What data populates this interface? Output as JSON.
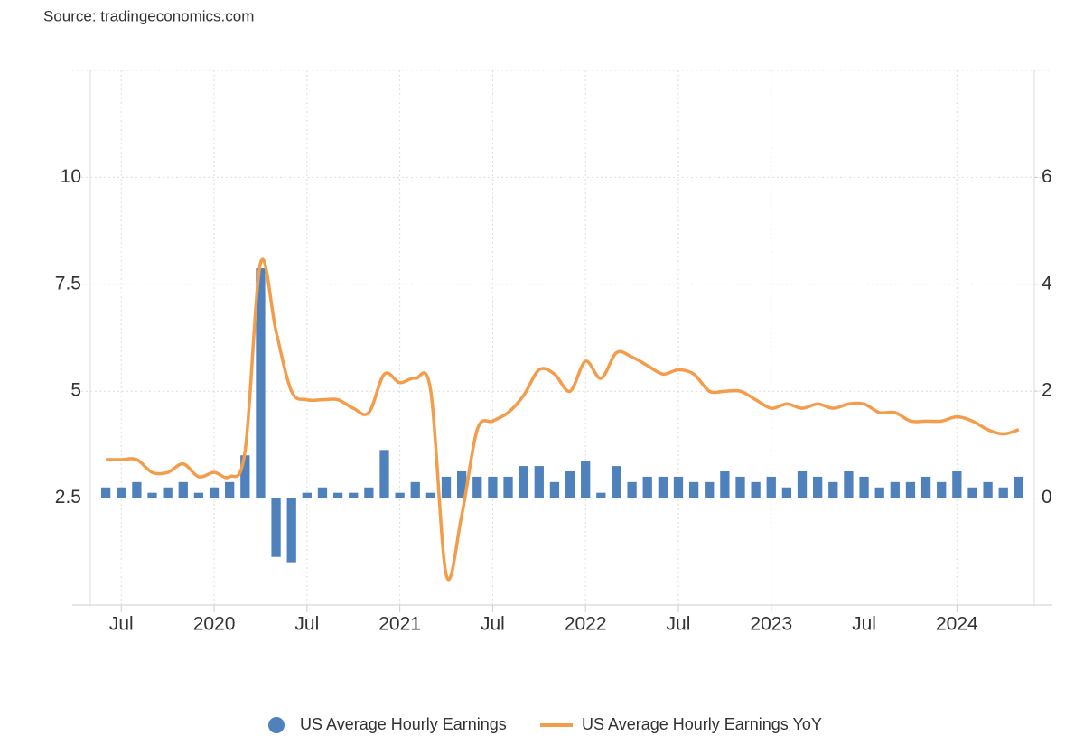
{
  "chart_data": {
    "type": "bar-line",
    "source": "Source: tradingeconomics.com",
    "x": [
      "2019-06",
      "2019-07",
      "2019-08",
      "2019-09",
      "2019-10",
      "2019-11",
      "2019-12",
      "2020-01",
      "2020-02",
      "2020-03",
      "2020-04",
      "2020-05",
      "2020-06",
      "2020-07",
      "2020-08",
      "2020-09",
      "2020-10",
      "2020-11",
      "2020-12",
      "2021-01",
      "2021-02",
      "2021-03",
      "2021-04",
      "2021-05",
      "2021-06",
      "2021-07",
      "2021-08",
      "2021-09",
      "2021-10",
      "2021-11",
      "2021-12",
      "2022-01",
      "2022-02",
      "2022-03",
      "2022-04",
      "2022-05",
      "2022-06",
      "2022-07",
      "2022-08",
      "2022-09",
      "2022-10",
      "2022-11",
      "2022-12",
      "2023-01",
      "2023-02",
      "2023-03",
      "2023-04",
      "2023-05",
      "2023-06",
      "2023-07",
      "2023-08",
      "2023-09",
      "2023-10",
      "2023-11",
      "2023-12",
      "2024-01",
      "2024-02",
      "2024-03",
      "2024-04",
      "2024-05"
    ],
    "xlim": [
      "2019-05",
      "2024-06"
    ],
    "xticks": [
      {
        "value": "2019-07",
        "label": "Jul"
      },
      {
        "value": "2020-01",
        "label": "2020"
      },
      {
        "value": "2020-07",
        "label": "Jul"
      },
      {
        "value": "2021-01",
        "label": "2021"
      },
      {
        "value": "2021-07",
        "label": "Jul"
      },
      {
        "value": "2022-01",
        "label": "2022"
      },
      {
        "value": "2022-07",
        "label": "Jul"
      },
      {
        "value": "2023-01",
        "label": "2023"
      },
      {
        "value": "2023-07",
        "label": "Jul"
      },
      {
        "value": "2024-01",
        "label": "2024"
      }
    ],
    "ylim": [
      0,
      12.5
    ],
    "yticks": [
      2.5,
      5,
      7.5,
      10
    ],
    "y2lim": [
      -2,
      8
    ],
    "y2ticks": [
      0,
      2,
      4,
      6
    ],
    "grid": true,
    "legend": "bottom",
    "series": [
      {
        "name": "US Average Hourly Earnings",
        "type": "bar",
        "axis": "y2",
        "color": "#4f81bd",
        "values": [
          0.2,
          0.2,
          0.3,
          0.1,
          0.2,
          0.3,
          0.1,
          0.2,
          0.3,
          0.8,
          4.3,
          -1.1,
          -1.2,
          0.1,
          0.2,
          0.1,
          0.1,
          0.2,
          0.9,
          0.1,
          0.3,
          0.1,
          0.4,
          0.5,
          0.4,
          0.4,
          0.4,
          0.6,
          0.6,
          0.3,
          0.5,
          0.7,
          0.1,
          0.6,
          0.3,
          0.4,
          0.4,
          0.4,
          0.3,
          0.3,
          0.5,
          0.4,
          0.3,
          0.4,
          0.2,
          0.5,
          0.4,
          0.3,
          0.5,
          0.4,
          0.2,
          0.3,
          0.3,
          0.4,
          0.3,
          0.5,
          0.2,
          0.3,
          0.2,
          0.4
        ]
      },
      {
        "name": "US Average Hourly Earnings YoY",
        "type": "line",
        "color": "#f39c4a",
        "values": [
          3.4,
          3.4,
          3.4,
          3.1,
          3.1,
          3.3,
          3.0,
          3.1,
          3.0,
          3.6,
          8.0,
          6.4,
          5.0,
          4.8,
          4.8,
          4.8,
          4.6,
          4.5,
          5.4,
          5.2,
          5.3,
          5.0,
          0.7,
          2.1,
          4.1,
          4.3,
          4.5,
          4.9,
          5.5,
          5.4,
          5.0,
          5.7,
          5.3,
          5.9,
          5.8,
          5.6,
          5.4,
          5.5,
          5.4,
          5.0,
          5.0,
          5.0,
          4.8,
          4.6,
          4.7,
          4.6,
          4.7,
          4.6,
          4.7,
          4.7,
          4.5,
          4.5,
          4.3,
          4.3,
          4.3,
          4.4,
          4.3,
          4.1,
          4.0,
          4.1
        ]
      }
    ]
  }
}
